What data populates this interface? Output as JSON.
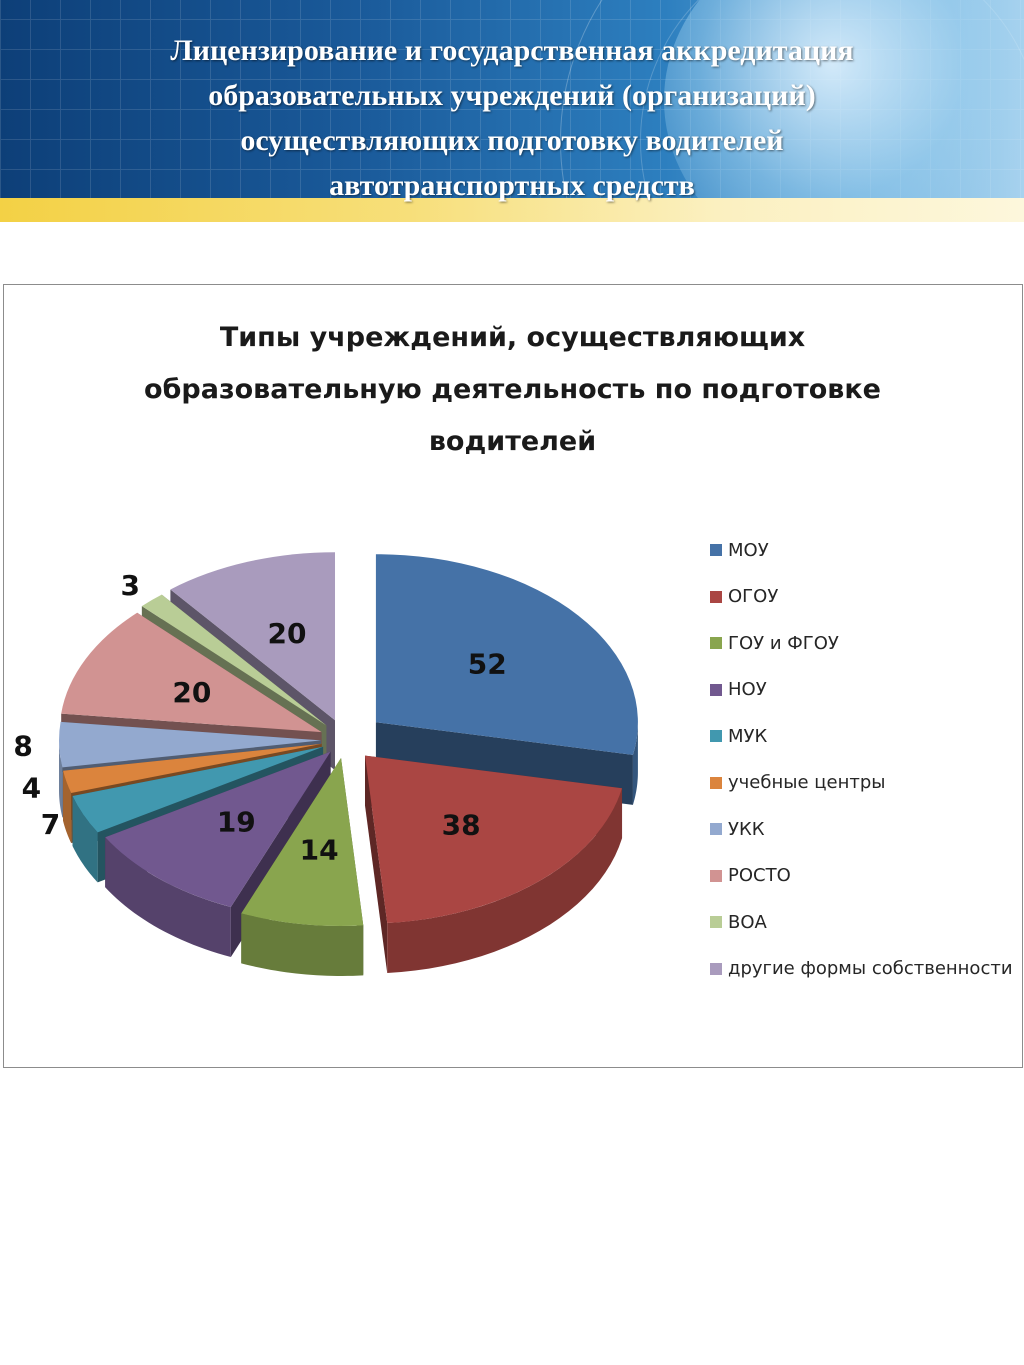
{
  "slide": {
    "title_lines": [
      "Лицензирование и государственная аккредитация",
      "образовательных учреждений (организаций)",
      "осуществляющих подготовку водителей",
      "автотранспортных средств"
    ]
  },
  "chart_data": {
    "type": "pie",
    "style": "3d-exploded",
    "title_lines": [
      "Типы учреждений, осуществляющих",
      "образовательную деятельность по подготовке",
      "водителей"
    ],
    "legend_position": "right",
    "series": [
      {
        "name": "МОУ",
        "value": 52,
        "color": "#4572a7"
      },
      {
        "name": "ОГОУ",
        "value": 38,
        "color": "#aa4643"
      },
      {
        "name": "ГОУ и ФГОУ",
        "value": 14,
        "color": "#89a54e"
      },
      {
        "name": "НОУ",
        "value": 19,
        "color": "#71588f"
      },
      {
        "name": "МУК",
        "value": 7,
        "color": "#4198af"
      },
      {
        "name": "учебные центры",
        "value": 4,
        "color": "#db843d"
      },
      {
        "name": "УКК",
        "value": 8,
        "color": "#93a9cf"
      },
      {
        "name": "РОСТО",
        "value": 20,
        "color": "#d19392"
      },
      {
        "name": "ВОА",
        "value": 3,
        "color": "#b9cd96"
      },
      {
        "name": "другие формы собственности",
        "value": 20,
        "color": "#a99bbd"
      }
    ]
  }
}
